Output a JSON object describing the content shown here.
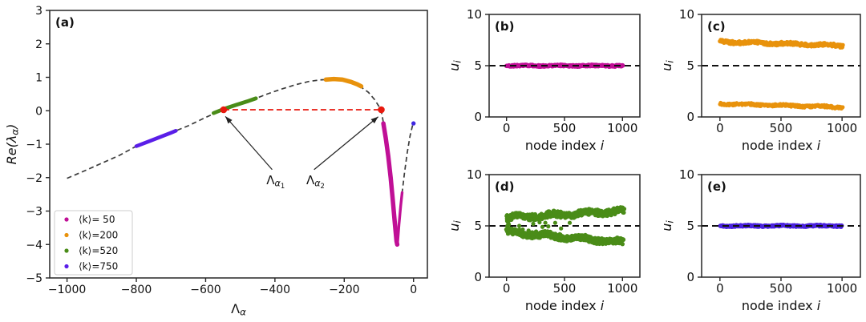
{
  "figure": {
    "background": "#ffffff",
    "spine_color": "#262626",
    "tick_color": "#111111",
    "dashed_curve_color": "#3c3c3c",
    "reference_dash_color": "#111111",
    "red_accent": "#e8190e"
  },
  "chart_data": [
    {
      "id": "a",
      "type": "scatter",
      "panel_label": "(a)",
      "xlabel": "Λ_α",
      "ylabel": "Re(λ_α)",
      "xlabel_segs": [
        {
          "t": "Λ"
        },
        {
          "t": "α",
          "lvl": 1,
          "i": 1
        }
      ],
      "ylabel_segs": [
        {
          "t": "Re",
          "i": 1
        },
        {
          "t": "(",
          "i": 1
        },
        {
          "t": "λ",
          "i": 1
        },
        {
          "t": "α",
          "lvl": 1,
          "i": 1
        },
        {
          "t": ")",
          "i": 1
        }
      ],
      "xlim": [
        -1050,
        40
      ],
      "ylim": [
        -5,
        3
      ],
      "xticks": [
        -1000,
        -800,
        -600,
        -400,
        -200,
        0
      ],
      "yticks": [
        3,
        2,
        1,
        0,
        -1,
        -2,
        -3,
        -4,
        -5
      ],
      "grid": false,
      "series": [
        {
          "name": "eigenvalue-dispersion-curve",
          "kind": "dashline",
          "color": "#3c3c3c",
          "width": 1.7,
          "dash": "6 4",
          "points": [
            [
              -1000,
              -2.02
            ],
            [
              -950,
              -1.8
            ],
            [
              -900,
              -1.57
            ],
            [
              -850,
              -1.34
            ],
            [
              -800,
              -1.06
            ],
            [
              -750,
              -0.86
            ],
            [
              -700,
              -0.66
            ],
            [
              -650,
              -0.45
            ],
            [
              -600,
              -0.2
            ],
            [
              -570,
              -0.06
            ],
            [
              -548,
              0.03
            ],
            [
              -520,
              0.14
            ],
            [
              -490,
              0.25
            ],
            [
              -457,
              0.36
            ],
            [
              -420,
              0.51
            ],
            [
              -380,
              0.65
            ],
            [
              -340,
              0.78
            ],
            [
              -300,
              0.88
            ],
            [
              -270,
              0.92
            ],
            [
              -240,
              0.94
            ],
            [
              -210,
              0.92
            ],
            [
              -180,
              0.84
            ],
            [
              -153,
              0.72
            ],
            [
              -130,
              0.55
            ],
            [
              -112,
              0.33
            ],
            [
              -98,
              0.1
            ],
            [
              -93,
              0.0
            ],
            [
              -87,
              -0.35
            ],
            [
              -80,
              -0.8
            ],
            [
              -73,
              -1.35
            ],
            [
              -66,
              -2.0
            ],
            [
              -60,
              -2.65
            ],
            [
              -54,
              -3.35
            ],
            [
              -48,
              -3.95
            ],
            [
              -44,
              -3.5
            ],
            [
              -39,
              -2.95
            ],
            [
              -33,
              -2.45
            ],
            [
              -26,
              -1.85
            ],
            [
              -18,
              -1.25
            ],
            [
              -10,
              -0.75
            ],
            [
              -3,
              -0.45
            ],
            [
              2,
              -0.36
            ]
          ]
        },
        {
          "name": "cluster-k50",
          "kind": "thick",
          "color": "#c01096",
          "width": 5.5,
          "points": [
            [
              -87,
              -0.38
            ],
            [
              -80,
              -0.82
            ],
            [
              -73,
              -1.36
            ],
            [
              -66,
              -2.0
            ],
            [
              -60,
              -2.66
            ],
            [
              -54,
              -3.36
            ],
            [
              -49,
              -3.9
            ],
            [
              -47,
              -4.0
            ]
          ]
        },
        {
          "name": "cluster-k50-branch",
          "kind": "thick",
          "color": "#c01096",
          "width": 3.4,
          "points": [
            [
              -46,
              -3.95
            ],
            [
              -42,
              -3.4
            ],
            [
              -37,
              -2.85
            ],
            [
              -33,
              -2.45
            ]
          ]
        },
        {
          "name": "cluster-k200",
          "kind": "thick",
          "color": "#e8920c",
          "width": 5.5,
          "points": [
            [
              -253,
              0.93
            ],
            [
              -230,
              0.95
            ],
            [
              -205,
              0.93
            ],
            [
              -180,
              0.86
            ],
            [
              -162,
              0.79
            ],
            [
              -151,
              0.73
            ]
          ]
        },
        {
          "name": "cluster-k520",
          "kind": "thick",
          "color": "#4a8c18",
          "width": 4.8,
          "points": [
            [
              -577,
              -0.07
            ],
            [
              -545,
              0.06
            ],
            [
              -510,
              0.18
            ],
            [
              -480,
              0.28
            ],
            [
              -455,
              0.37
            ]
          ]
        },
        {
          "name": "cluster-k750",
          "kind": "thick",
          "color": "#5a1ee8",
          "width": 4.6,
          "points": [
            [
              -800,
              -1.06
            ],
            [
              -765,
              -0.92
            ],
            [
              -730,
              -0.78
            ],
            [
              -700,
              -0.66
            ],
            [
              -686,
              -0.6
            ]
          ]
        },
        {
          "name": "isolated-eigenvalue",
          "kind": "dots",
          "color": "#4028e0",
          "r": 2.7,
          "points": [
            [
              0,
              -0.38
            ]
          ]
        },
        {
          "name": "lambda-interval-line",
          "kind": "dashline",
          "color": "#e8190e",
          "width": 1.7,
          "dash": "7 4",
          "points": [
            [
              -548,
              0.03
            ],
            [
              -93,
              0.03
            ]
          ]
        },
        {
          "name": "lambda-endpoints",
          "kind": "dots",
          "color": "#e8190e",
          "r": 4.3,
          "points": [
            [
              -548,
              0.03
            ],
            [
              -93,
              0.03
            ]
          ]
        }
      ],
      "annotations": [
        {
          "name": "lambda-alpha1-annotation",
          "segs": [
            {
              "t": "Λ"
            },
            {
              "t": "α",
              "lvl": 1,
              "i": 1
            },
            {
              "t": "1",
              "lvl": 2
            }
          ],
          "tx": -398,
          "ty": -2.2,
          "tail": [
            -408,
            -1.76
          ],
          "head": [
            -543,
            -0.17
          ]
        },
        {
          "name": "lambda-alpha2-annotation",
          "segs": [
            {
              "t": "Λ"
            },
            {
              "t": "α",
              "lvl": 1,
              "i": 1
            },
            {
              "t": "2",
              "lvl": 2
            }
          ],
          "tx": -283,
          "ty": -2.2,
          "tail": [
            -287,
            -1.76
          ],
          "head": [
            -102,
            -0.18
          ]
        }
      ],
      "legend": {
        "position": "lower-left",
        "entries": [
          {
            "label": "⟨k⟩= 50",
            "color": "#c01096"
          },
          {
            "label": "⟨k⟩=200",
            "color": "#e8920c"
          },
          {
            "label": "⟨k⟩=520",
            "color": "#4a8c18"
          },
          {
            "label": "⟨k⟩=750",
            "color": "#5a1ee8"
          }
        ]
      }
    },
    {
      "id": "b",
      "type": "scatter",
      "panel_label": "(b)",
      "xlabel": "node index i",
      "ylabel": "u_i",
      "xlabel_segs": [
        {
          "t": "node index "
        },
        {
          "t": "i",
          "i": 1
        }
      ],
      "ylabel_segs": [
        {
          "t": "u",
          "i": 1
        },
        {
          "t": "i",
          "lvl": 1,
          "i": 1
        }
      ],
      "xlim": [
        -150,
        1150
      ],
      "ylim": [
        0,
        10
      ],
      "xticks": [
        0,
        500,
        1000
      ],
      "yticks": [
        0,
        5,
        10
      ],
      "series": [
        {
          "name": "uniform-state-k50",
          "kind": "band",
          "color": "#c01096",
          "r": 2.8,
          "n": 240,
          "x0": 0,
          "x1": 1000,
          "y0": 5,
          "y1": 5,
          "jitter": 0.07,
          "seed": 11
        },
        {
          "name": "reference-line",
          "kind": "dashline",
          "color": "#111111",
          "width": 1.9,
          "dash": "8 5",
          "points": [
            [
              -150,
              5
            ],
            [
              1150,
              5
            ]
          ]
        }
      ]
    },
    {
      "id": "c",
      "type": "scatter",
      "panel_label": "(c)",
      "xlabel": "node index i",
      "ylabel": "u_i",
      "xlabel_segs": [
        {
          "t": "node index "
        },
        {
          "t": "i",
          "i": 1
        }
      ],
      "ylabel_segs": [
        {
          "t": "u",
          "i": 1
        },
        {
          "t": "i",
          "lvl": 1,
          "i": 1
        }
      ],
      "xlim": [
        -150,
        1150
      ],
      "ylim": [
        0,
        10
      ],
      "xticks": [
        0,
        500,
        1000
      ],
      "yticks": [
        0,
        5,
        10
      ],
      "series": [
        {
          "name": "upper-branch-k200",
          "kind": "band",
          "color": "#e8920c",
          "r": 2.5,
          "n": 300,
          "x0": 0,
          "x1": 1005,
          "y0": 7.35,
          "y1": 6.95,
          "jitter": 0.16,
          "seed": 21
        },
        {
          "name": "lower-branch-k200",
          "kind": "band",
          "color": "#e8920c",
          "r": 2.4,
          "n": 300,
          "x0": 0,
          "x1": 1005,
          "y0": 1.3,
          "y1": 0.95,
          "jitter": 0.12,
          "seed": 22
        },
        {
          "name": "reference-line",
          "kind": "dashline",
          "color": "#111111",
          "width": 1.9,
          "dash": "8 5",
          "points": [
            [
              -150,
              5
            ],
            [
              1150,
              5
            ]
          ]
        }
      ]
    },
    {
      "id": "d",
      "type": "scatter",
      "panel_label": "(d)",
      "xlabel": "node index i",
      "ylabel": "u_i",
      "xlabel_segs": [
        {
          "t": "node index "
        },
        {
          "t": "i",
          "i": 1
        }
      ],
      "ylabel_segs": [
        {
          "t": "u",
          "i": 1
        },
        {
          "t": "i",
          "lvl": 1,
          "i": 1
        }
      ],
      "xlim": [
        -150,
        1150
      ],
      "ylim": [
        0,
        10
      ],
      "xticks": [
        0,
        500,
        1000
      ],
      "yticks": [
        0,
        5,
        10
      ],
      "series": [
        {
          "name": "reference-line",
          "kind": "dashline",
          "color": "#111111",
          "width": 1.9,
          "dash": "8 5",
          "points": [
            [
              -150,
              5
            ],
            [
              1150,
              5
            ]
          ]
        },
        {
          "name": "upper-branch-k520",
          "kind": "band",
          "color": "#4a8c18",
          "r": 2.7,
          "n": 330,
          "x0": 0,
          "x1": 1010,
          "y0": 5.8,
          "y1": 6.45,
          "jitter": 0.3,
          "seed": 31
        },
        {
          "name": "lower-branch-k520",
          "kind": "band",
          "color": "#4a8c18",
          "r": 2.7,
          "n": 330,
          "x0": 0,
          "x1": 1010,
          "y0": 4.4,
          "y1": 3.4,
          "jitter": 0.3,
          "seed": 32
        },
        {
          "name": "left-edge-cluster",
          "kind": "dots",
          "color": "#4a8c18",
          "r": 2.6,
          "points": [
            [
              5,
              4.6
            ],
            [
              8,
              5.0
            ],
            [
              12,
              5.35
            ],
            [
              4,
              5.7
            ],
            [
              16,
              4.8
            ],
            [
              10,
              4.45
            ],
            [
              20,
              5.15
            ],
            [
              6,
              5.5
            ]
          ]
        },
        {
          "name": "intermediate-nodes",
          "kind": "dots",
          "color": "#4a8c18",
          "r": 2.6,
          "points": [
            [
              110,
              5.0
            ],
            [
              140,
              4.65
            ],
            [
              190,
              4.55
            ],
            [
              230,
              5.2
            ],
            [
              255,
              4.45
            ],
            [
              285,
              5.35
            ],
            [
              310,
              4.9
            ],
            [
              335,
              5.3
            ],
            [
              360,
              4.95
            ],
            [
              420,
              5.3
            ],
            [
              470,
              4.75
            ],
            [
              545,
              5.3
            ]
          ]
        }
      ]
    },
    {
      "id": "e",
      "type": "scatter",
      "panel_label": "(e)",
      "xlabel": "node index i",
      "ylabel": "u_i",
      "xlabel_segs": [
        {
          "t": "node index "
        },
        {
          "t": "i",
          "i": 1
        }
      ],
      "ylabel_segs": [
        {
          "t": "u",
          "i": 1
        },
        {
          "t": "i",
          "lvl": 1,
          "i": 1
        }
      ],
      "xlim": [
        -150,
        1150
      ],
      "ylim": [
        0,
        10
      ],
      "xticks": [
        0,
        500,
        1000
      ],
      "yticks": [
        0,
        5,
        10
      ],
      "series": [
        {
          "name": "uniform-state-k750",
          "kind": "band",
          "color": "#4a22dc",
          "r": 2.8,
          "n": 240,
          "x0": 0,
          "x1": 1000,
          "y0": 5,
          "y1": 5,
          "jitter": 0.07,
          "seed": 41
        },
        {
          "name": "reference-line",
          "kind": "dashline",
          "color": "#111111",
          "width": 1.9,
          "dash": "8 5",
          "points": [
            [
              -150,
              5
            ],
            [
              1150,
              5
            ]
          ]
        }
      ]
    }
  ]
}
